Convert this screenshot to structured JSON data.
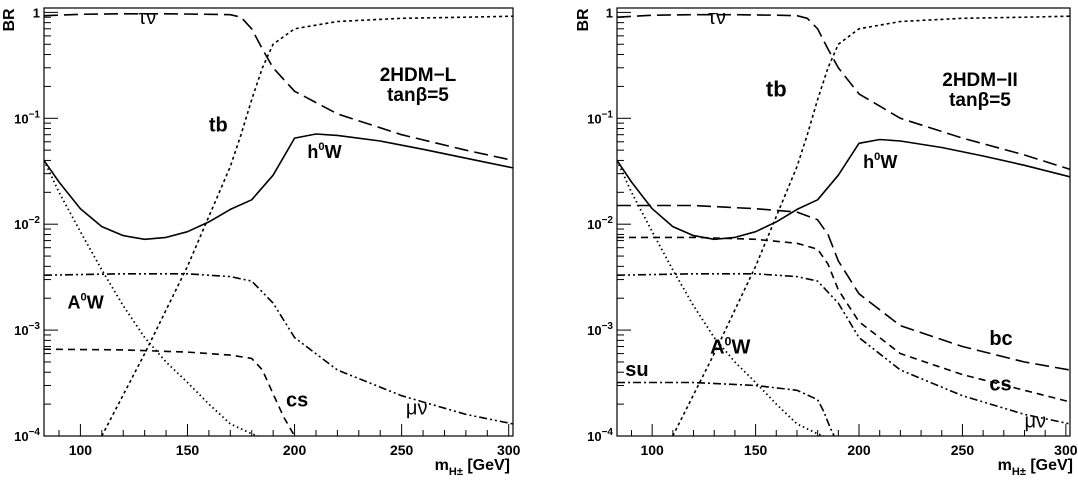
{
  "chart_data": [
    {
      "type": "line",
      "ylabel": "BR",
      "xlabel": "m",
      "xlabel_sub": "H±",
      "xlabel_unit": "[GeV]",
      "xlim": [
        83,
        302
      ],
      "ylim": [
        0.0001,
        1.1
      ],
      "yscale": "log",
      "xticks": [
        100,
        150,
        200,
        250,
        300
      ],
      "yticks": [
        {
          "value": 0.0001,
          "base": "10",
          "exp": "−4"
        },
        {
          "value": 0.001,
          "base": "10",
          "exp": "−3"
        },
        {
          "value": 0.01,
          "base": "10",
          "exp": "−2"
        },
        {
          "value": 0.1,
          "base": "10",
          "exp": "−1"
        },
        {
          "value": 1,
          "base": "1",
          "exp": ""
        }
      ],
      "grid": false,
      "model_label": "2HDM−L",
      "tanbeta_label": "tanβ=5",
      "series": [
        {
          "label": "τν",
          "label_x": 127,
          "label_y": 0.78,
          "label_size": 20,
          "label_weight": "normal",
          "style": "longdash",
          "width": 1.6,
          "x": [
            83,
            100,
            120,
            140,
            160,
            170,
            175,
            180,
            185,
            190,
            200,
            220,
            250,
            280,
            302
          ],
          "y": [
            0.93,
            0.96,
            0.97,
            0.97,
            0.96,
            0.95,
            0.9,
            0.7,
            0.45,
            0.3,
            0.18,
            0.11,
            0.07,
            0.05,
            0.04
          ]
        },
        {
          "label": "tb",
          "label_x": 160,
          "label_y": 0.075,
          "label_size": 20,
          "label_weight": "bold",
          "style": "dotted",
          "width": 1.6,
          "x": [
            110,
            130,
            150,
            170,
            175,
            180,
            185,
            190,
            200,
            220,
            250,
            280,
            302
          ],
          "y": [
            0.0001,
            0.0006,
            0.004,
            0.035,
            0.07,
            0.15,
            0.3,
            0.5,
            0.7,
            0.82,
            0.88,
            0.9,
            0.92
          ]
        },
        {
          "label": "h⁰W",
          "label_x": 206,
          "label_y": 0.042,
          "label_size": 18,
          "label_weight": "bold",
          "style": "solid",
          "width": 1.6,
          "x": [
            83,
            90,
            100,
            110,
            120,
            130,
            140,
            150,
            160,
            170,
            180,
            190,
            200,
            210,
            220,
            240,
            260,
            280,
            302
          ],
          "y": [
            0.04,
            0.025,
            0.014,
            0.0095,
            0.0078,
            0.0072,
            0.0075,
            0.0085,
            0.0105,
            0.0138,
            0.017,
            0.029,
            0.065,
            0.071,
            0.069,
            0.061,
            0.051,
            0.042,
            0.034
          ]
        },
        {
          "label": "A⁰W",
          "label_x": 94,
          "label_y": 0.0016,
          "label_size": 18,
          "label_weight": "bold",
          "style": "dotted_fine",
          "width": 1.8,
          "x": [
            83,
            90,
            100,
            110,
            120,
            130,
            140,
            150,
            160,
            170,
            180,
            183
          ],
          "y": [
            0.04,
            0.02,
            0.0085,
            0.0037,
            0.0017,
            0.00085,
            0.0005,
            0.00032,
            0.0002,
            0.00013,
            0.000105,
            0.0001
          ]
        },
        {
          "label": "cs",
          "label_x": 196,
          "label_y": 0.00019,
          "label_size": 20,
          "label_weight": "bold",
          "style": "dashed",
          "width": 1.6,
          "x": [
            83,
            120,
            150,
            170,
            180,
            185,
            190,
            195,
            200
          ],
          "y": [
            0.00066,
            0.00065,
            0.00062,
            0.00058,
            0.00054,
            0.00042,
            0.00025,
            0.00015,
            0.0001
          ]
        },
        {
          "label": "μν",
          "label_x": 252,
          "label_y": 0.00016,
          "label_size": 20,
          "label_weight": "normal",
          "style": "dashdotdot",
          "width": 1.6,
          "x": [
            83,
            120,
            150,
            170,
            180,
            190,
            200,
            220,
            250,
            280,
            302
          ],
          "y": [
            0.0033,
            0.0034,
            0.0034,
            0.0032,
            0.0029,
            0.0018,
            0.00085,
            0.00042,
            0.00024,
            0.00016,
            0.00013
          ]
        }
      ]
    },
    {
      "type": "line",
      "ylabel": "BR",
      "xlabel": "m",
      "xlabel_sub": "H±",
      "xlabel_unit": "[GeV]",
      "xlim": [
        83,
        302
      ],
      "ylim": [
        0.0001,
        1.1
      ],
      "yscale": "log",
      "xticks": [
        100,
        150,
        200,
        250,
        300
      ],
      "yticks": [
        {
          "value": 0.0001,
          "base": "10",
          "exp": "−4"
        },
        {
          "value": 0.001,
          "base": "10",
          "exp": "−3"
        },
        {
          "value": 0.01,
          "base": "10",
          "exp": "−2"
        },
        {
          "value": 0.1,
          "base": "10",
          "exp": "−1"
        },
        {
          "value": 1,
          "base": "1",
          "exp": ""
        }
      ],
      "grid": false,
      "model_label": "2HDM−II",
      "tanbeta_label": "tanβ=5",
      "series": [
        {
          "label": "τν",
          "label_x": 127,
          "label_y": 0.78,
          "label_size": 20,
          "label_weight": "normal",
          "style": "longdash",
          "width": 1.6,
          "x": [
            83,
            100,
            120,
            140,
            160,
            170,
            175,
            180,
            185,
            190,
            200,
            220,
            250,
            280,
            302
          ],
          "y": [
            0.9,
            0.94,
            0.95,
            0.95,
            0.94,
            0.93,
            0.88,
            0.7,
            0.45,
            0.3,
            0.17,
            0.1,
            0.065,
            0.045,
            0.033
          ]
        },
        {
          "label": "tb",
          "label_x": 155,
          "label_y": 0.16,
          "label_size": 22,
          "label_weight": "bold",
          "style": "dotted",
          "width": 1.6,
          "x": [
            110,
            130,
            150,
            170,
            175,
            180,
            185,
            190,
            200,
            220,
            250,
            280,
            302
          ],
          "y": [
            0.0001,
            0.0006,
            0.004,
            0.035,
            0.07,
            0.15,
            0.3,
            0.5,
            0.7,
            0.82,
            0.88,
            0.9,
            0.92
          ]
        },
        {
          "label": "h⁰W",
          "label_x": 202,
          "label_y": 0.034,
          "label_size": 18,
          "label_weight": "bold",
          "style": "solid",
          "width": 1.6,
          "x": [
            83,
            90,
            100,
            110,
            120,
            130,
            140,
            150,
            160,
            170,
            180,
            190,
            200,
            210,
            220,
            240,
            260,
            280,
            302
          ],
          "y": [
            0.04,
            0.025,
            0.014,
            0.0095,
            0.0078,
            0.0072,
            0.0075,
            0.0085,
            0.0105,
            0.0138,
            0.017,
            0.029,
            0.058,
            0.063,
            0.061,
            0.053,
            0.044,
            0.036,
            0.028
          ]
        },
        {
          "label": "bc",
          "label_x": 263,
          "label_y": 0.00072,
          "label_size": 20,
          "label_weight": "bold",
          "style": "longdash",
          "width": 1.6,
          "x": [
            83,
            120,
            150,
            170,
            180,
            185,
            190,
            200,
            220,
            250,
            280,
            302
          ],
          "y": [
            0.015,
            0.015,
            0.014,
            0.013,
            0.011,
            0.008,
            0.0045,
            0.0022,
            0.0011,
            0.0007,
            0.0005,
            0.00042
          ]
        },
        {
          "label": "cs",
          "label_x": 263,
          "label_y": 0.00027,
          "label_size": 20,
          "label_weight": "bold",
          "style": "dashed",
          "width": 1.6,
          "x": [
            83,
            120,
            150,
            170,
            180,
            185,
            190,
            200,
            220,
            250,
            280,
            302
          ],
          "y": [
            0.0075,
            0.0075,
            0.0072,
            0.0066,
            0.0058,
            0.0042,
            0.0024,
            0.0012,
            0.0006,
            0.00038,
            0.00027,
            0.00021
          ]
        },
        {
          "label": "μν",
          "label_x": 280,
          "label_y": 0.00012,
          "label_size": 20,
          "label_weight": "normal",
          "style": "dashdotdot",
          "width": 1.6,
          "x": [
            83,
            120,
            150,
            170,
            180,
            190,
            200,
            220,
            250,
            280,
            302
          ],
          "y": [
            0.0033,
            0.0034,
            0.0034,
            0.0032,
            0.0029,
            0.0018,
            0.00085,
            0.00042,
            0.00024,
            0.00016,
            0.00013
          ]
        },
        {
          "label": "su",
          "label_x": 87,
          "label_y": 0.00037,
          "label_size": 20,
          "label_weight": "bold",
          "style": "dashdot",
          "width": 1.6,
          "x": [
            83,
            120,
            150,
            170,
            180,
            183,
            186,
            188
          ],
          "y": [
            0.00032,
            0.00032,
            0.0003,
            0.00027,
            0.00022,
            0.00017,
            0.00012,
            0.0001
          ]
        },
        {
          "label": "A⁰W",
          "label_x": 128,
          "label_y": 0.0006,
          "label_size": 20,
          "label_weight": "bold",
          "style": "dotted_fine",
          "width": 1.8,
          "x": [
            83,
            90,
            100,
            110,
            120,
            130,
            140,
            150,
            160,
            170,
            180,
            183
          ],
          "y": [
            0.04,
            0.02,
            0.0085,
            0.0037,
            0.0017,
            0.00085,
            0.0005,
            0.00032,
            0.0002,
            0.00013,
            0.000105,
            0.0001
          ]
        }
      ]
    }
  ]
}
